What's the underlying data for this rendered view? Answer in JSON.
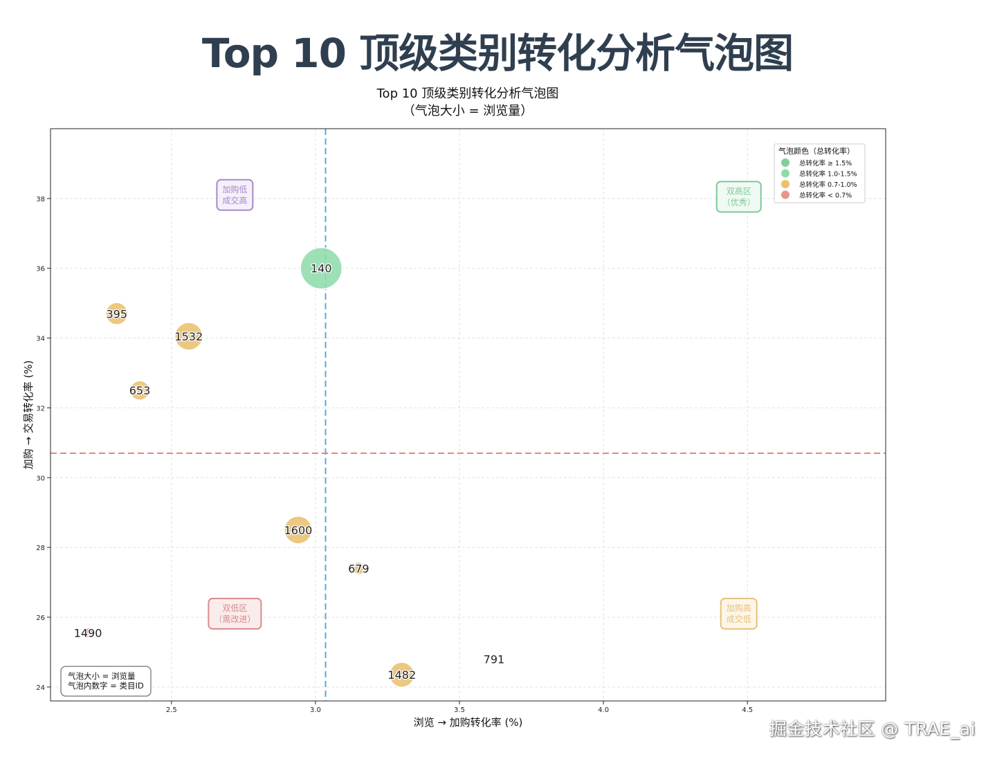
{
  "page_title": "Top 10 顶级类别转化分析气泡图",
  "watermark": "掘金技术社区 @ TRAE_ai",
  "chart_data": {
    "type": "scatter",
    "title": "Top 10 顶级类别转化分析气泡图",
    "subtitle": "（气泡大小 = 浏览量）",
    "xlabel": "浏览 → 加购转化率 (%)",
    "ylabel": "加购 → 交易转化率 (%)",
    "xlim": [
      2.08,
      4.98
    ],
    "ylim": [
      23.6,
      40.0
    ],
    "xticks": [
      2.5,
      3.0,
      3.5,
      4.0,
      4.5
    ],
    "yticks": [
      24,
      26,
      28,
      30,
      32,
      34,
      36,
      38
    ],
    "grid": true,
    "ref_lines": {
      "x": 3.035,
      "y": 30.7
    },
    "colors": {
      "v_line": "#5aa9d6",
      "h_line": "#e08a7a",
      "ge_1_5": "#7fcf98",
      "r_1_0_1_5": "#8fdcab",
      "r_0_7_1_0": "#ebc06e",
      "lt_0_7": "#e8958a"
    },
    "points": [
      {
        "id": "140",
        "x": 3.02,
        "y": 36.0,
        "size": 30,
        "group": "r_1_0_1_5"
      },
      {
        "id": "395",
        "x": 2.31,
        "y": 34.7,
        "size": 16,
        "group": "r_0_7_1_0"
      },
      {
        "id": "1532",
        "x": 2.56,
        "y": 34.05,
        "size": 20,
        "group": "r_0_7_1_0"
      },
      {
        "id": "653",
        "x": 2.39,
        "y": 32.5,
        "size": 14,
        "group": "r_0_7_1_0"
      },
      {
        "id": "1600",
        "x": 2.94,
        "y": 28.5,
        "size": 20,
        "group": "r_0_7_1_0"
      },
      {
        "id": "679",
        "x": 3.15,
        "y": 27.4,
        "size": 9,
        "group": "r_0_7_1_0"
      },
      {
        "id": "1490",
        "x": 2.21,
        "y": 25.55,
        "size": 7,
        "group": "lt_0_7"
      },
      {
        "id": "1482",
        "x": 3.3,
        "y": 24.35,
        "size": 18,
        "group": "r_0_7_1_0"
      },
      {
        "id": "791",
        "x": 3.62,
        "y": 24.8,
        "size": 0,
        "group": "r_0_7_1_0"
      }
    ],
    "legend": {
      "title": "气泡颜色（总转化率）",
      "position": "top-right",
      "entries": [
        {
          "label": "总转化率 ≥ 1.5%",
          "color": "#7fcf98"
        },
        {
          "label": "总转化率 1.0-1.5%",
          "color": "#8fdcab"
        },
        {
          "label": "总转化率 0.7-1.0%",
          "color": "#ebc06e"
        },
        {
          "label": "总转化率 < 0.7%",
          "color": "#e8958a"
        }
      ]
    },
    "quadrant_labels": [
      {
        "lines": [
          "加购低",
          "成交高"
        ],
        "x": 2.72,
        "y": 38.1,
        "color": "#a58ac9",
        "fill": "#f5f0fa"
      },
      {
        "lines": [
          "双高区",
          "（优秀）"
        ],
        "x": 4.47,
        "y": 38.05,
        "color": "#7cc89a",
        "fill": "#f0faf3"
      },
      {
        "lines": [
          "双低区",
          "（需改进）"
        ],
        "x": 2.72,
        "y": 26.1,
        "color": "#d98a8a",
        "fill": "#fbecec"
      },
      {
        "lines": [
          "加购高",
          "成交低"
        ],
        "x": 4.47,
        "y": 26.1,
        "color": "#e6c07a",
        "fill": "#fdf6e8"
      }
    ],
    "note": [
      "气泡大小 = 浏览量",
      "气泡内数字 = 类目ID"
    ]
  }
}
